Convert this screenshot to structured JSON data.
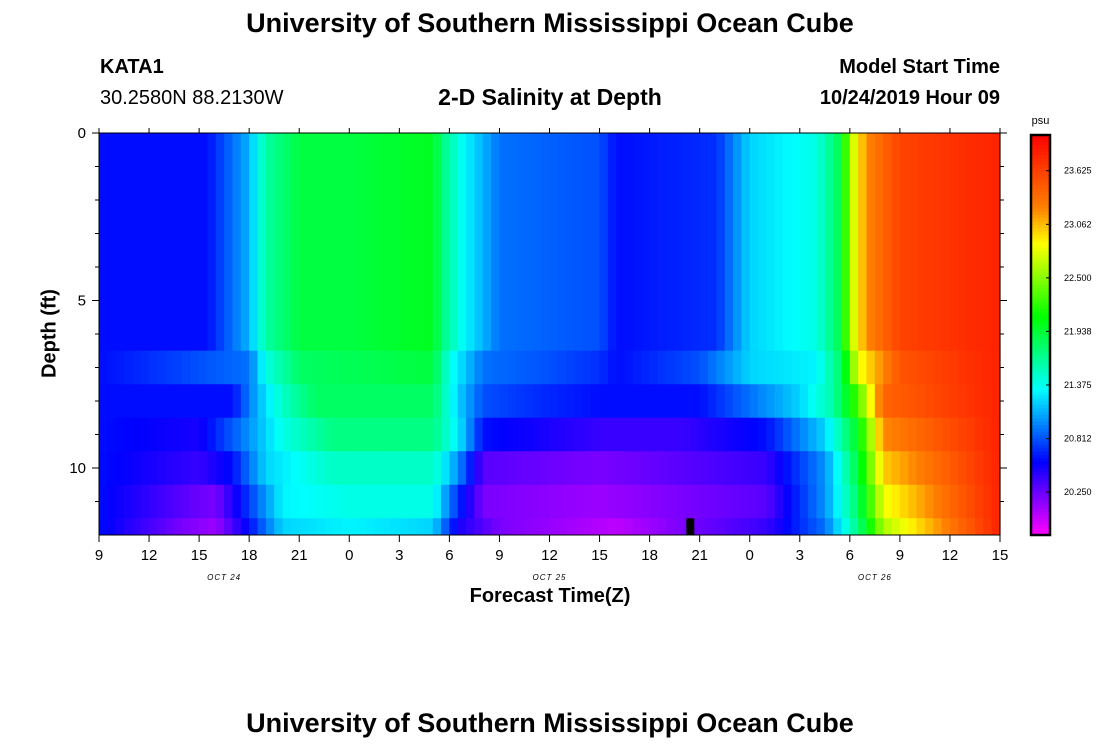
{
  "header": {
    "title": "University of Southern Mississippi Ocean Cube",
    "station_id": "KATA1",
    "station_coords": "30.2580N 88.2130W",
    "plot_title": "2-D Salinity at Depth",
    "model_start_label": "Model Start Time",
    "model_start_value": "10/24/2019 Hour 09"
  },
  "footer": {
    "title": "University of Southern Mississippi Ocean Cube"
  },
  "chart_data": {
    "type": "heatmap",
    "title": "2-D Salinity at Depth",
    "xlabel": "Forecast Time(Z)",
    "ylabel": "Depth (ft)",
    "x_hours_start": 0,
    "x_hours_end": 54,
    "x_tick_labels": [
      "9",
      "12",
      "15",
      "18",
      "21",
      "0",
      "3",
      "6",
      "9",
      "12",
      "15",
      "18",
      "21",
      "0",
      "3",
      "6",
      "9",
      "12",
      "15"
    ],
    "date_labels": [
      {
        "label": "OCT 24",
        "hour": 7.5
      },
      {
        "label": "OCT 25",
        "hour": 27
      },
      {
        "label": "OCT 26",
        "hour": 46.5
      }
    ],
    "ylim": [
      0,
      12
    ],
    "y_tick_labels": [
      "0",
      "5",
      "10"
    ],
    "y_tick_values": [
      0,
      5,
      10
    ],
    "y_minor_ticks": [
      1,
      2,
      3,
      4,
      6,
      7,
      8,
      9,
      11
    ],
    "colorbar": {
      "unit": "psu",
      "min": 19.8,
      "max": 24.0,
      "tick_values": [
        20.25,
        20.812,
        21.375,
        21.938,
        22.5,
        23.062,
        23.625
      ],
      "tick_labels": [
        "20.250",
        "20.812",
        "21.375",
        "21.938",
        "22.500",
        "23.062",
        "23.625"
      ],
      "colors": [
        "#ff00ff",
        "#8000ff",
        "#0000ff",
        "#0080ff",
        "#00ffff",
        "#00ff80",
        "#00ff00",
        "#80ff00",
        "#ffff00",
        "#ff8000",
        "#ff4000",
        "#ff0000"
      ]
    },
    "depth_bands": [
      {
        "top": 0,
        "bottom": 6.5,
        "keyframes": [
          [
            0,
            20.6
          ],
          [
            6.5,
            20.6
          ],
          [
            9,
            21.1
          ],
          [
            10,
            21.6
          ],
          [
            12,
            21.9
          ],
          [
            15,
            21.9
          ],
          [
            20,
            22.0
          ],
          [
            20.6,
            21.7
          ],
          [
            22,
            21.3
          ],
          [
            24,
            20.9
          ],
          [
            30,
            20.8
          ],
          [
            31,
            20.6
          ],
          [
            37,
            20.7
          ],
          [
            39,
            21.2
          ],
          [
            43,
            21.4
          ],
          [
            44.5,
            21.9
          ],
          [
            45,
            22.6
          ],
          [
            46,
            23.2
          ],
          [
            48,
            23.6
          ],
          [
            54,
            23.8
          ]
        ]
      },
      {
        "top": 6.5,
        "bottom": 7.5,
        "keyframes": [
          [
            0,
            20.6
          ],
          [
            9,
            20.9
          ],
          [
            10,
            21.4
          ],
          [
            12,
            21.8
          ],
          [
            20,
            21.9
          ],
          [
            21,
            21.4
          ],
          [
            23,
            20.9
          ],
          [
            27,
            20.8
          ],
          [
            30,
            20.7
          ],
          [
            31,
            20.6
          ],
          [
            36,
            20.8
          ],
          [
            39,
            21.2
          ],
          [
            43,
            21.3
          ],
          [
            44.5,
            21.8
          ],
          [
            45.5,
            22.8
          ],
          [
            48,
            23.5
          ],
          [
            54,
            23.8
          ]
        ]
      },
      {
        "top": 7.5,
        "bottom": 8.5,
        "keyframes": [
          [
            0,
            20.6
          ],
          [
            8,
            20.6
          ],
          [
            9.5,
            21.1
          ],
          [
            11,
            21.5
          ],
          [
            13,
            21.8
          ],
          [
            20,
            21.8
          ],
          [
            21.5,
            21.2
          ],
          [
            23,
            20.8
          ],
          [
            26,
            20.7
          ],
          [
            30,
            20.6
          ],
          [
            36,
            20.6
          ],
          [
            38,
            20.8
          ],
          [
            42,
            21.2
          ],
          [
            44,
            21.6
          ],
          [
            45.5,
            22.3
          ],
          [
            47,
            23.4
          ],
          [
            54,
            23.8
          ]
        ]
      },
      {
        "top": 8.5,
        "bottom": 9.5,
        "keyframes": [
          [
            0,
            20.6
          ],
          [
            6,
            20.5
          ],
          [
            9,
            21.0
          ],
          [
            11,
            21.4
          ],
          [
            14,
            21.7
          ],
          [
            20,
            21.7
          ],
          [
            21.5,
            21.3
          ],
          [
            23,
            20.6
          ],
          [
            30,
            20.4
          ],
          [
            35,
            20.4
          ],
          [
            40,
            20.6
          ],
          [
            43.5,
            21.2
          ],
          [
            45.5,
            22.0
          ],
          [
            47,
            23.2
          ],
          [
            54,
            23.8
          ]
        ]
      },
      {
        "top": 9.5,
        "bottom": 10.5,
        "keyframes": [
          [
            0,
            20.6
          ],
          [
            6,
            20.4
          ],
          [
            8,
            20.6
          ],
          [
            10,
            21.2
          ],
          [
            14,
            21.5
          ],
          [
            20,
            21.5
          ],
          [
            21.5,
            21.0
          ],
          [
            23,
            20.3
          ],
          [
            30,
            20.2
          ],
          [
            35,
            20.3
          ],
          [
            40,
            20.4
          ],
          [
            43.5,
            21.0
          ],
          [
            45.5,
            21.9
          ],
          [
            47,
            23.0
          ],
          [
            54,
            23.8
          ]
        ]
      },
      {
        "top": 10.5,
        "bottom": 11.5,
        "keyframes": [
          [
            0,
            20.6
          ],
          [
            5,
            20.3
          ],
          [
            7,
            20.2
          ],
          [
            8.5,
            20.6
          ],
          [
            11,
            21.3
          ],
          [
            15,
            21.4
          ],
          [
            20,
            21.4
          ],
          [
            21.5,
            20.7
          ],
          [
            23,
            20.2
          ],
          [
            30,
            20.1
          ],
          [
            35,
            20.2
          ],
          [
            40,
            20.3
          ],
          [
            43.5,
            21.0
          ],
          [
            45.5,
            21.8
          ],
          [
            47,
            22.8
          ],
          [
            54,
            23.8
          ]
        ]
      },
      {
        "top": 11.5,
        "bottom": 12,
        "keyframes": [
          [
            0,
            20.6
          ],
          [
            5,
            20.2
          ],
          [
            7,
            20.1
          ],
          [
            9,
            20.6
          ],
          [
            11,
            21.2
          ],
          [
            15,
            21.3
          ],
          [
            20,
            21.2
          ],
          [
            21.5,
            20.5
          ],
          [
            24,
            20.2
          ],
          [
            31,
            20.0
          ],
          [
            35,
            20.2
          ],
          [
            40,
            20.4
          ],
          [
            43.5,
            20.9
          ],
          [
            45.5,
            21.7
          ],
          [
            47,
            22.6
          ],
          [
            54,
            23.8
          ]
        ]
      }
    ]
  }
}
